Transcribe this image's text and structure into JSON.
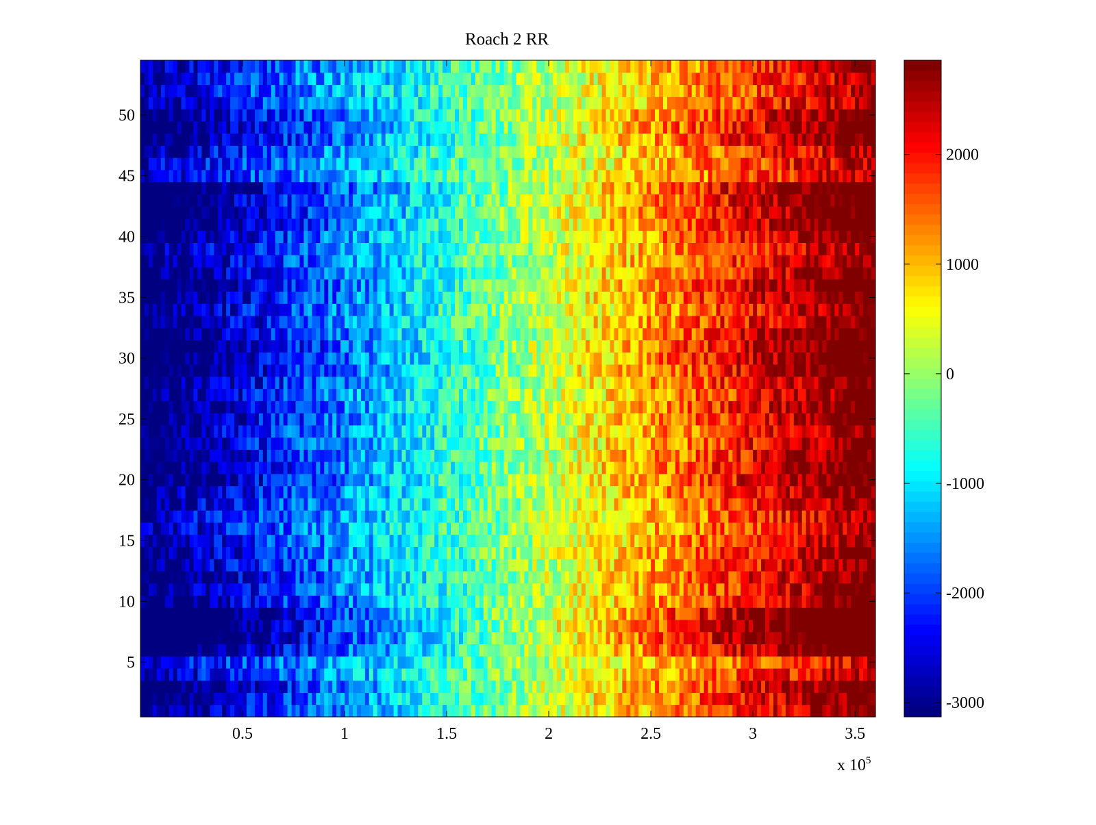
{
  "chart_data": {
    "type": "heatmap",
    "title": "Roach 2 RR",
    "xlabel": "",
    "ylabel": "",
    "x_exponent_label": "x 10",
    "x_exponent_power": "5",
    "xlim": [
      0,
      3.6
    ],
    "ylim": [
      0.5,
      54.5
    ],
    "xticks": [
      "0.5",
      "1",
      "1.5",
      "2",
      "2.5",
      "3",
      "3.5"
    ],
    "xtick_values": [
      0.5,
      1,
      1.5,
      2,
      2.5,
      3,
      3.5
    ],
    "yticks": [
      "5",
      "10",
      "15",
      "20",
      "25",
      "30",
      "35",
      "40",
      "45",
      "50"
    ],
    "ytick_values": [
      5,
      10,
      15,
      20,
      25,
      30,
      35,
      40,
      45,
      50
    ],
    "rows": 54,
    "columns_rendered": 180,
    "colormap": "jet",
    "clim": [
      -3130,
      2860
    ],
    "colorbar_ticks": [
      "-3000",
      "-2000",
      "-1000",
      "0",
      "1000",
      "2000"
    ],
    "colorbar_tick_values": [
      -3000,
      -2000,
      -1000,
      0,
      1000,
      2000
    ],
    "value_center": -120,
    "value_half_span": 3000,
    "noise_amplitude": 650,
    "row_contrast": [
      1.0,
      1.05,
      1.1,
      0.9,
      0.8,
      1.2,
      1.35,
      1.35,
      1.3,
      1.05,
      1.0,
      1.05,
      1.0,
      1.0,
      0.95,
      0.9,
      0.9,
      0.95,
      1.0,
      1.1,
      1.1,
      1.05,
      1.0,
      1.0,
      1.05,
      1.1,
      1.0,
      1.05,
      1.15,
      1.15,
      1.2,
      1.1,
      1.05,
      1.0,
      1.1,
      1.15,
      1.05,
      1.0,
      0.95,
      1.05,
      1.15,
      1.15,
      1.15,
      1.2,
      0.85,
      0.85,
      0.9,
      1.05,
      1.1,
      1.05,
      0.9,
      0.85,
      0.85,
      0.9
    ]
  }
}
